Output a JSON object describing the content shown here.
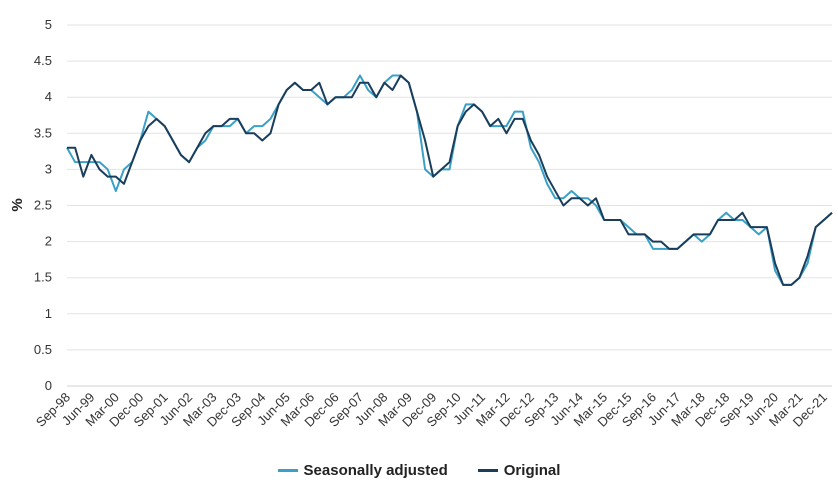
{
  "chart_data": {
    "type": "line",
    "xlabel": "",
    "ylabel": "%",
    "ylim": [
      0,
      5
    ],
    "yticks": [
      "0",
      "0.5",
      "1",
      "1.5",
      "2",
      "2.5",
      "3",
      "3.5",
      "4",
      "4.5",
      "5"
    ],
    "xtick_labels": [
      "Sep-98",
      "Jun-99",
      "Mar-00",
      "Dec-00",
      "Sep-01",
      "Jun-02",
      "Mar-03",
      "Dec-03",
      "Sep-04",
      "Jun-05",
      "Mar-06",
      "Dec-06",
      "Sep-07",
      "Jun-08",
      "Mar-09",
      "Dec-09",
      "Sep-10",
      "Jun-11",
      "Mar-12",
      "Dec-12",
      "Sep-13",
      "Jun-14",
      "Mar-15",
      "Dec-15",
      "Sep-16",
      "Jun-17",
      "Mar-18",
      "Dec-18",
      "Sep-19",
      "Jun-20",
      "Mar-21",
      "Dec-21"
    ],
    "x_start": "Sep-98",
    "x_end": "Mar-22",
    "x_step": "quarterly",
    "grid": true,
    "legend_position": "bottom-center",
    "series": [
      {
        "name": "Seasonally adjusted",
        "color": "#3ba0c6",
        "values": [
          3.3,
          3.1,
          3.1,
          3.1,
          3.1,
          3.0,
          2.7,
          3.0,
          3.1,
          3.4,
          3.8,
          3.7,
          3.6,
          3.4,
          3.2,
          3.1,
          3.3,
          3.4,
          3.6,
          3.6,
          3.6,
          3.7,
          3.5,
          3.6,
          3.6,
          3.7,
          3.9,
          4.1,
          4.2,
          4.1,
          4.1,
          4.0,
          3.9,
          4.0,
          4.0,
          4.1,
          4.3,
          4.1,
          4.0,
          4.2,
          4.3,
          4.3,
          4.2,
          3.8,
          3.0,
          2.9,
          3.0,
          3.0,
          3.6,
          3.9,
          3.9,
          3.8,
          3.6,
          3.6,
          3.6,
          3.8,
          3.8,
          3.3,
          3.1,
          2.8,
          2.6,
          2.6,
          2.7,
          2.6,
          2.6,
          2.5,
          2.3,
          2.3,
          2.3,
          2.2,
          2.1,
          2.1,
          1.9,
          1.9,
          1.9,
          1.9,
          2.0,
          2.1,
          2.0,
          2.1,
          2.3,
          2.4,
          2.3,
          2.3,
          2.2,
          2.1,
          2.2,
          1.6,
          1.4,
          1.4,
          1.5,
          1.7,
          2.2,
          2.3,
          2.4
        ]
      },
      {
        "name": "Original",
        "color": "#1a3d5c",
        "values": [
          3.3,
          3.3,
          2.9,
          3.2,
          3.0,
          2.9,
          2.9,
          2.8,
          3.1,
          3.4,
          3.6,
          3.7,
          3.6,
          3.4,
          3.2,
          3.1,
          3.3,
          3.5,
          3.6,
          3.6,
          3.7,
          3.7,
          3.5,
          3.5,
          3.4,
          3.5,
          3.9,
          4.1,
          4.2,
          4.1,
          4.1,
          4.2,
          3.9,
          4.0,
          4.0,
          4.0,
          4.2,
          4.2,
          4.0,
          4.2,
          4.1,
          4.3,
          4.2,
          3.8,
          3.4,
          2.9,
          3.0,
          3.1,
          3.6,
          3.8,
          3.9,
          3.8,
          3.6,
          3.7,
          3.5,
          3.7,
          3.7,
          3.4,
          3.2,
          2.9,
          2.7,
          2.5,
          2.6,
          2.6,
          2.5,
          2.6,
          2.3,
          2.3,
          2.3,
          2.1,
          2.1,
          2.1,
          2.0,
          2.0,
          1.9,
          1.9,
          2.0,
          2.1,
          2.1,
          2.1,
          2.3,
          2.3,
          2.3,
          2.4,
          2.2,
          2.2,
          2.2,
          1.7,
          1.4,
          1.4,
          1.5,
          1.8,
          2.2,
          2.3,
          2.4
        ]
      }
    ]
  }
}
